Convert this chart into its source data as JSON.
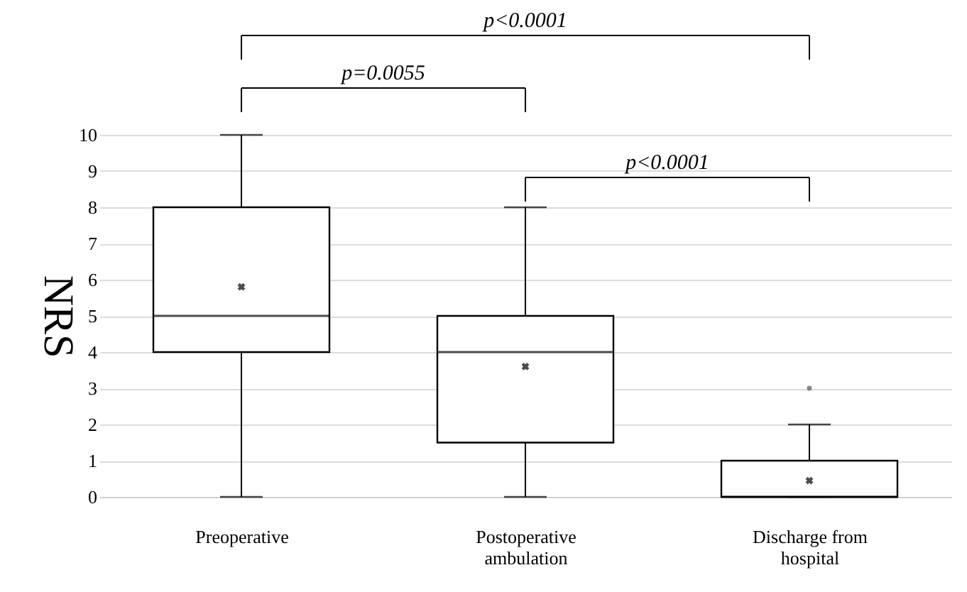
{
  "chart_data": {
    "type": "box",
    "ylabel": "NRS",
    "categories": [
      "Preoperative",
      "Postoperative ambulation",
      "Discharge from hospital"
    ],
    "boxes": [
      {
        "low": 0,
        "q1": 4,
        "median": 5,
        "q3": 8,
        "high": 10,
        "mean": 5.8
      },
      {
        "low": 0,
        "q1": 1.5,
        "median": 4,
        "q3": 5,
        "high": 8,
        "mean": 3.6
      },
      {
        "low": 0,
        "q1": 0,
        "median": 0,
        "q3": 1,
        "high": 2,
        "mean": 0.45,
        "outliers": [
          3
        ]
      }
    ],
    "ylim": [
      0,
      10
    ],
    "yticks": [
      0,
      1,
      2,
      3,
      4,
      5,
      6,
      7,
      8,
      9,
      10
    ],
    "grid": "y",
    "annotations": [
      "p<0.0001",
      "p=0.0055",
      "p<0.0001"
    ]
  }
}
